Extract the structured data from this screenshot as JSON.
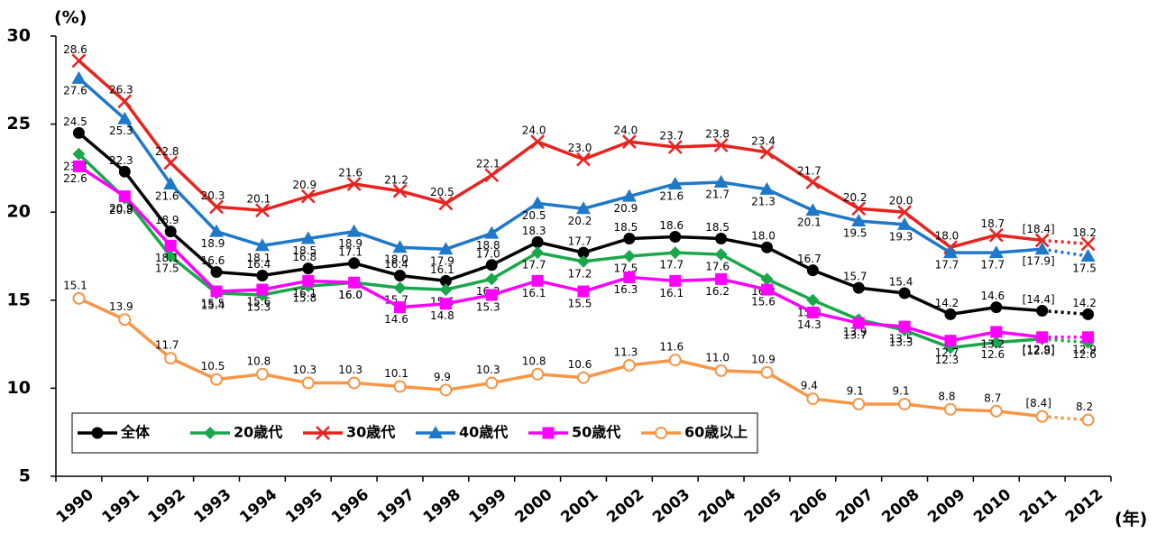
{
  "chart_data": {
    "type": "line",
    "y_label": "(%)",
    "x_label": "(年)",
    "categories": [
      "1990",
      "1991",
      "1992",
      "1993",
      "1994",
      "1995",
      "1996",
      "1997",
      "1998",
      "1999",
      "2000",
      "2001",
      "2002",
      "2003",
      "2004",
      "2005",
      "2006",
      "2007",
      "2008",
      "2009",
      "2010",
      "2011",
      "2012"
    ],
    "ylim": [
      5,
      30
    ],
    "yticks": [
      5,
      10,
      15,
      20,
      25,
      30
    ],
    "grid": false,
    "legend": "lower left",
    "series": [
      {
        "name": "全体",
        "color": "#000000",
        "marker": "circle",
        "values": [
          24.5,
          22.3,
          18.9,
          16.6,
          16.4,
          16.8,
          17.1,
          16.4,
          16.1,
          17.0,
          18.3,
          17.7,
          18.5,
          18.6,
          18.5,
          18.0,
          16.7,
          15.7,
          15.4,
          14.2,
          14.6,
          14.4,
          14.2
        ],
        "value_labels": [
          "24.5",
          "22.3",
          "18.9",
          "16.6",
          "16.4",
          "16.8",
          "17.1",
          "16.4",
          "16.1",
          "17.0",
          "18.3",
          "17.7",
          "18.5",
          "18.6",
          "18.5",
          "18.0",
          "16.7",
          "15.7",
          "15.4",
          "14.2",
          "14.6",
          "[14.4]",
          "14.2"
        ]
      },
      {
        "name": "20歳代",
        "color": "#1aa64a",
        "marker": "diamond",
        "values": [
          23.3,
          20.8,
          17.5,
          15.4,
          15.3,
          15.8,
          16.0,
          15.7,
          15.6,
          16.2,
          17.7,
          17.2,
          17.5,
          17.7,
          17.6,
          16.2,
          15.0,
          13.9,
          13.3,
          12.3,
          12.6,
          12.8,
          12.6
        ],
        "value_labels": [
          "23.3",
          "20.8",
          "17.5",
          "15.4",
          "15.3",
          "15.8",
          "16.0",
          "15.7",
          "15.6",
          "16.2",
          "17.7",
          "17.2",
          "17.5",
          "17.7",
          "17.6",
          "16.2",
          "15.0",
          "13.9",
          "13.3",
          "12.3",
          "12.6",
          "[12.8]",
          "12.6"
        ]
      },
      {
        "name": "30歳代",
        "color": "#e8231f",
        "marker": "x",
        "values": [
          28.6,
          26.3,
          22.8,
          20.3,
          20.1,
          20.9,
          21.6,
          21.2,
          20.5,
          22.1,
          24.0,
          23.0,
          24.0,
          23.7,
          23.8,
          23.4,
          21.7,
          20.2,
          20.0,
          18.0,
          18.7,
          18.4,
          18.2
        ],
        "value_labels": [
          "28.6",
          "26.3",
          "22.8",
          "20.3",
          "20.1",
          "20.9",
          "21.6",
          "21.2",
          "20.5",
          "22.1",
          "24.0",
          "23.0",
          "24.0",
          "23.7",
          "23.8",
          "23.4",
          "21.7",
          "20.2",
          "20.0",
          "18.0",
          "18.7",
          "[18.4]",
          "18.2"
        ]
      },
      {
        "name": "40歳代",
        "color": "#1f78c8",
        "marker": "triangle",
        "values": [
          27.6,
          25.3,
          21.6,
          18.9,
          18.1,
          18.5,
          18.9,
          18.0,
          17.9,
          18.8,
          20.5,
          20.2,
          20.9,
          21.6,
          21.7,
          21.3,
          20.1,
          19.5,
          19.3,
          17.7,
          17.7,
          17.9,
          17.5
        ],
        "value_labels": [
          "27.6",
          "25.3",
          "21.6",
          "18.9",
          "18.1",
          "18.5",
          "18.9",
          "18.0",
          "17.9",
          "18.8",
          "20.5",
          "20.2",
          "20.9",
          "21.6",
          "21.7",
          "21.3",
          "20.1",
          "19.5",
          "19.3",
          "17.7",
          "17.7",
          "[17.9]",
          "17.5"
        ]
      },
      {
        "name": "50歳代",
        "color": "#ff00ff",
        "marker": "square",
        "values": [
          22.6,
          20.9,
          18.1,
          15.5,
          15.6,
          16.1,
          16.0,
          14.6,
          14.8,
          15.3,
          16.1,
          15.5,
          16.3,
          16.1,
          16.2,
          15.6,
          14.3,
          13.7,
          13.5,
          12.7,
          13.2,
          12.9,
          12.9
        ],
        "value_labels": [
          "22.6",
          "20.9",
          "18.1",
          "15.5",
          "15.6",
          "16.1",
          "16.0",
          "14.6",
          "14.8",
          "15.3",
          "16.1",
          "15.5",
          "16.3",
          "16.1",
          "16.2",
          "15.6",
          "14.3",
          "13.7",
          "13.5",
          "12.7",
          "13.2",
          "[12.9]",
          "12.9"
        ]
      },
      {
        "name": "60歳以上",
        "color": "#f79646",
        "marker": "open-circle",
        "values": [
          15.1,
          13.9,
          11.7,
          10.5,
          10.8,
          10.3,
          10.3,
          10.1,
          9.9,
          10.3,
          10.8,
          10.6,
          11.3,
          11.6,
          11.0,
          10.9,
          9.4,
          9.1,
          9.1,
          8.8,
          8.7,
          8.4,
          8.2
        ],
        "value_labels": [
          "15.1",
          "13.9",
          "11.7",
          "10.5",
          "10.8",
          "10.3",
          "10.3",
          "10.1",
          "9.9",
          "10.3",
          "10.8",
          "10.6",
          "11.3",
          "11.6",
          "11.0",
          "10.9",
          "9.4",
          "9.1",
          "9.1",
          "8.8",
          "8.7",
          "[8.4]",
          "8.2"
        ]
      }
    ]
  }
}
